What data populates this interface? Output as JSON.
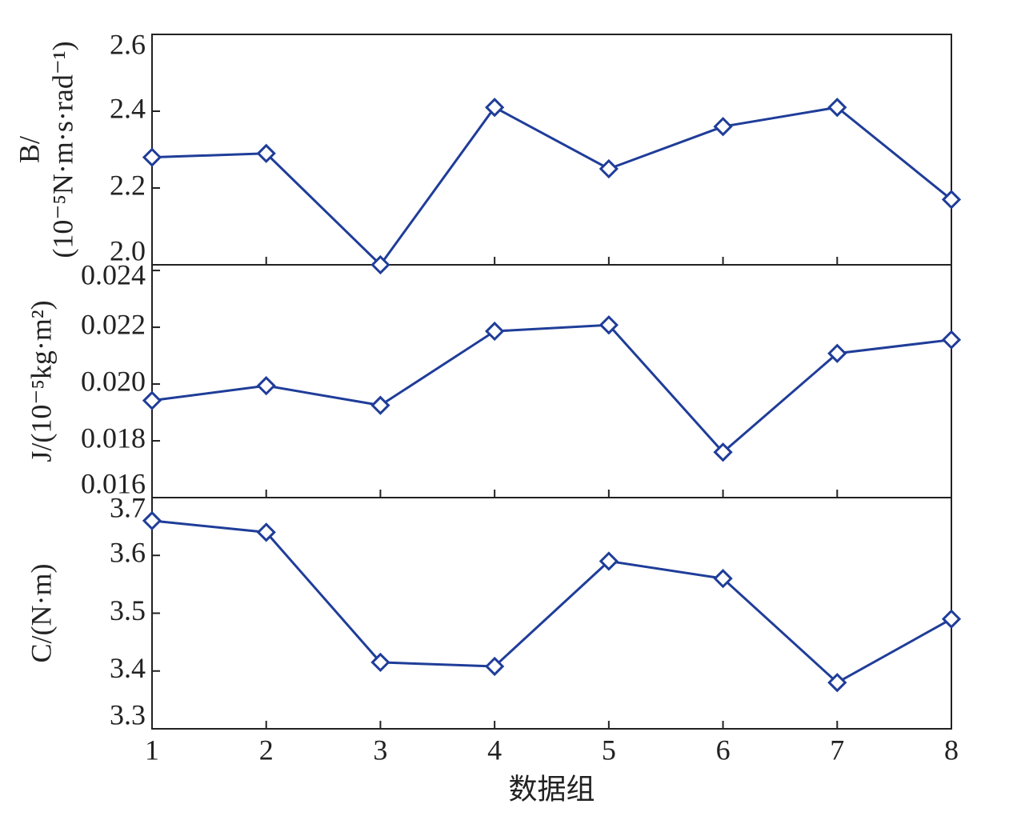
{
  "chart_data": [
    {
      "type": "line",
      "ylabel": [
        "B/",
        "(10⁻⁵N·m·s·rad⁻¹)"
      ],
      "x": [
        1,
        2,
        3,
        4,
        5,
        6,
        7,
        8
      ],
      "values": [
        2.28,
        2.29,
        2.0,
        2.41,
        2.25,
        2.36,
        2.41,
        2.17
      ],
      "color": "#1f3d99",
      "xlim": [
        1,
        8
      ],
      "xticks": [
        1,
        2,
        3,
        4,
        5,
        6,
        7,
        8
      ],
      "ylim": [
        2.0,
        2.6
      ],
      "yticks": [
        {
          "value": 2.0,
          "label": "2.0"
        },
        2.2,
        2.4,
        2.6
      ]
    },
    {
      "type": "line",
      "ylabel": [
        "J/(10⁻⁵kg·m²)"
      ],
      "x": [
        1,
        2,
        3,
        4,
        5,
        6,
        7,
        8
      ],
      "values": [
        0.01942,
        0.01994,
        0.01925,
        0.02186,
        0.02208,
        0.0176,
        0.02108,
        0.02156
      ],
      "color": "#1f3d99",
      "xlim": [
        1,
        8
      ],
      "xticks": [
        1,
        2,
        3,
        4,
        5,
        6,
        7,
        8
      ],
      "ylim": [
        0.016,
        0.0242
      ],
      "yticks": [
        0.016,
        0.018,
        {
          "value": 0.02,
          "label": "0.020"
        },
        0.022,
        0.024
      ]
    },
    {
      "type": "line",
      "ylabel": [
        "C/(N·m)"
      ],
      "xlabel": "数据组",
      "x": [
        1,
        2,
        3,
        4,
        5,
        6,
        7,
        8
      ],
      "values": [
        3.66,
        3.64,
        3.415,
        3.408,
        3.59,
        3.56,
        3.38,
        3.49
      ],
      "color": "#1f3d99",
      "xlim": [
        1,
        8
      ],
      "xticks": [
        1,
        2,
        3,
        4,
        5,
        6,
        7,
        8
      ],
      "ylim": [
        3.3,
        3.7
      ],
      "yticks": [
        3.3,
        3.4,
        3.5,
        3.6,
        3.7
      ]
    }
  ]
}
